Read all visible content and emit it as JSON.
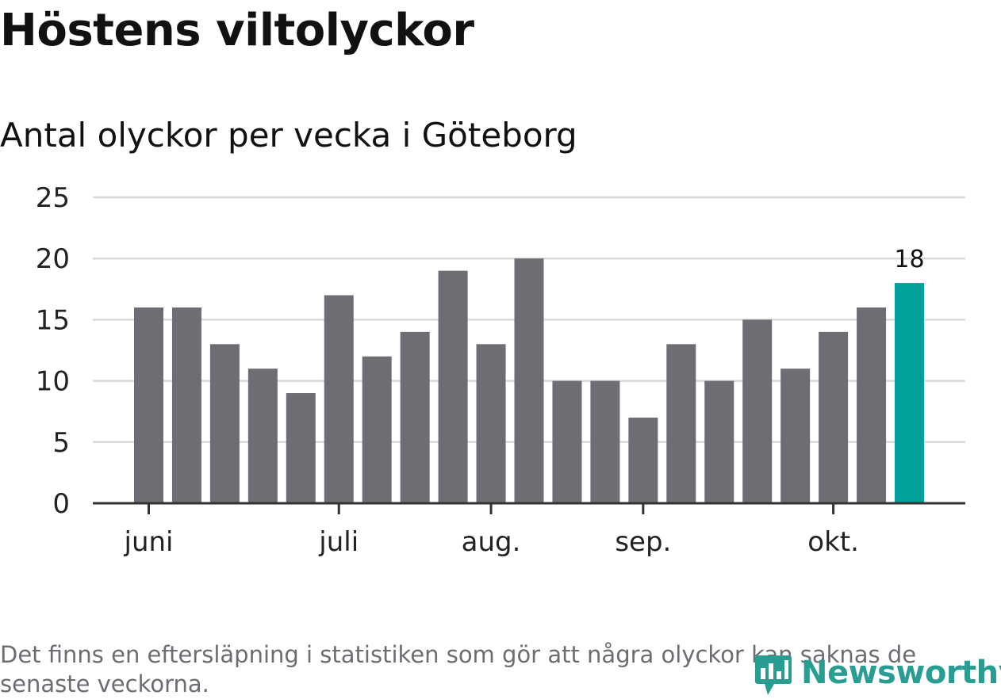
{
  "title": "Höstens viltolyckor",
  "subtitle": "Antal olyckor per vecka i Göteborg",
  "note": "Det finns en eftersläpning i statistiken som gör att några olyckor kan saknas de senaste veckorna.",
  "brand": {
    "name": "Newsworthy",
    "color": "#2a9d93"
  },
  "chart_data": {
    "type": "bar",
    "title": "Antal olyckor per vecka i Göteborg",
    "xlabel": "",
    "ylabel": "",
    "ylim": [
      0,
      25
    ],
    "yticks": [
      0,
      5,
      10,
      15,
      20,
      25
    ],
    "grid": true,
    "values": [
      16,
      16,
      13,
      11,
      9,
      17,
      12,
      14,
      19,
      13,
      20,
      10,
      10,
      7,
      13,
      10,
      15,
      11,
      14,
      16,
      18
    ],
    "month_ticks": [
      {
        "label": "juni",
        "position": 0.0
      },
      {
        "label": "juli",
        "position": 5.0
      },
      {
        "label": "aug.",
        "position": 9.0
      },
      {
        "label": "sep.",
        "position": 13.0
      },
      {
        "label": "okt.",
        "position": 18.0
      }
    ],
    "highlight_index": 20,
    "highlight_label": "18",
    "bar_color": "#6f6d73",
    "highlight_color": "#00a19a",
    "grid_color": "#d9d9d9",
    "axis_color": "#333333"
  }
}
